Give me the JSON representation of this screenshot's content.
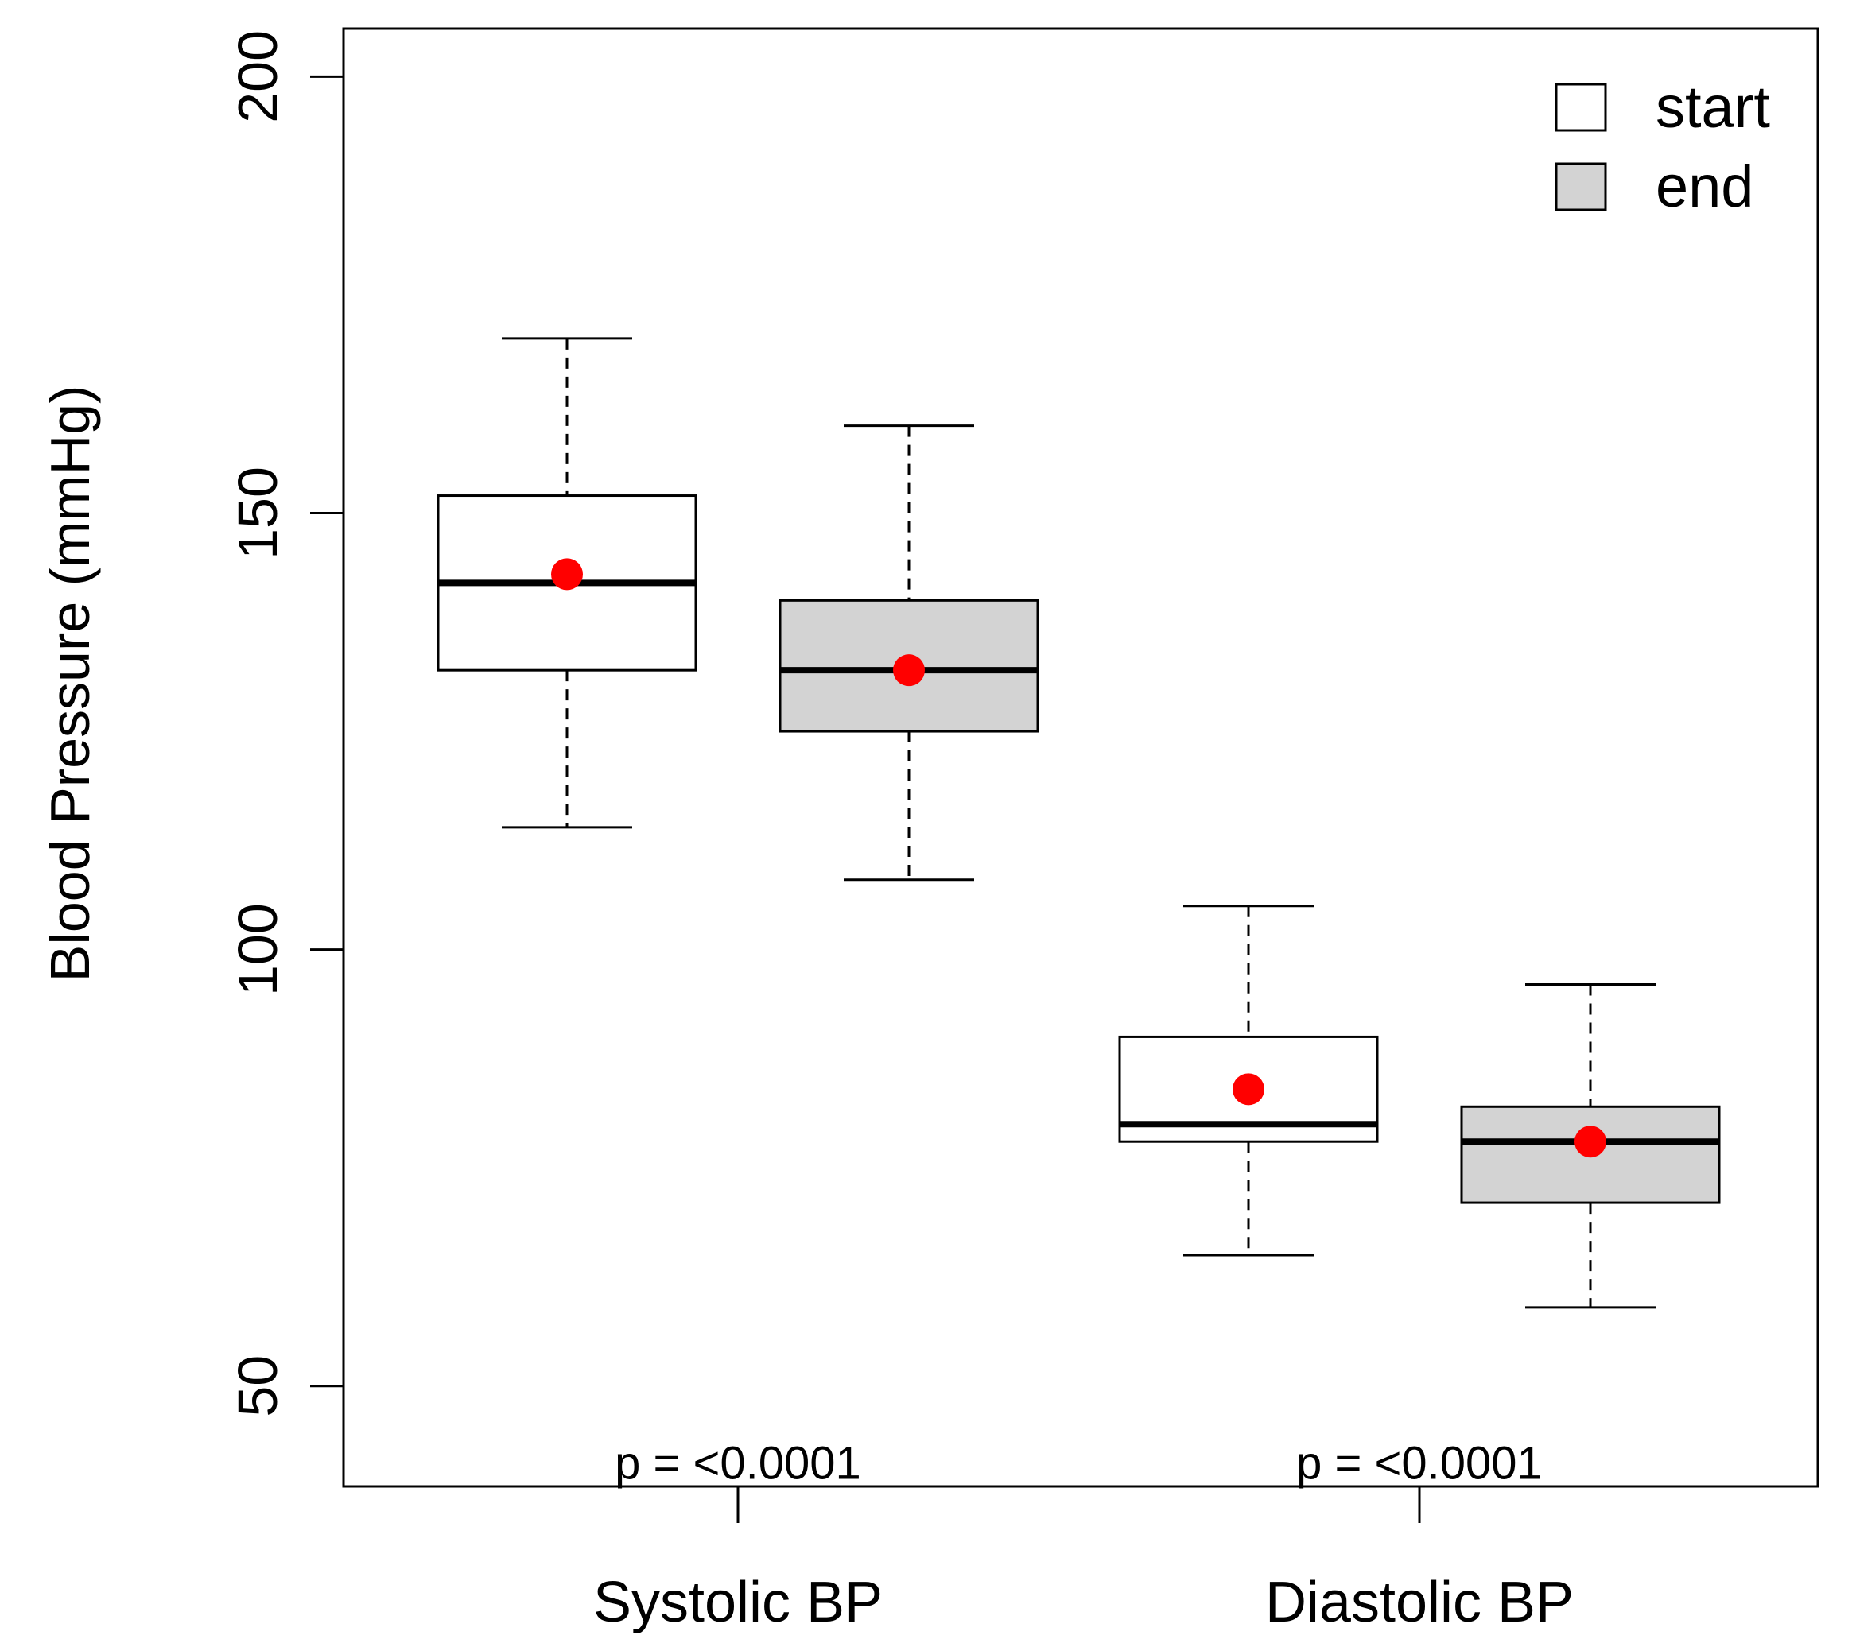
{
  "chart_data": {
    "type": "boxplot",
    "title": "",
    "xlabel": "",
    "ylabel": "Blood Pressure (mmHg)",
    "ylim": [
      38.5,
      205.5
    ],
    "yticks": [
      50,
      100,
      150,
      200
    ],
    "grid": false,
    "legend": {
      "position": "top-right",
      "entries": [
        {
          "label": "start",
          "fill": "#ffffff"
        },
        {
          "label": "end",
          "fill": "#d3d3d3"
        }
      ]
    },
    "categories": [
      "Systolic BP",
      "Diastolic BP"
    ],
    "series": [
      {
        "name": "start",
        "fill": "#ffffff",
        "boxes": [
          {
            "category": "Systolic BP",
            "whisker_low": 114,
            "q1": 132,
            "median": 142,
            "q3": 152,
            "whisker_high": 170,
            "mean": 143
          },
          {
            "category": "Diastolic BP",
            "whisker_low": 65,
            "q1": 78,
            "median": 80,
            "q3": 90,
            "whisker_high": 105,
            "mean": 84
          }
        ]
      },
      {
        "name": "end",
        "fill": "#d3d3d3",
        "boxes": [
          {
            "category": "Systolic BP",
            "whisker_low": 108,
            "q1": 125,
            "median": 132,
            "q3": 140,
            "whisker_high": 160,
            "mean": 132
          },
          {
            "category": "Diastolic BP",
            "whisker_low": 59,
            "q1": 71,
            "median": 78,
            "q3": 82,
            "whisker_high": 96,
            "mean": 78
          }
        ]
      }
    ],
    "mean_marker_color": "#ff0000",
    "annotations": [
      {
        "category": "Systolic BP",
        "text": "p = <0.0001",
        "y": 41
      },
      {
        "category": "Diastolic BP",
        "text": "p = <0.0001",
        "y": 41
      }
    ]
  }
}
